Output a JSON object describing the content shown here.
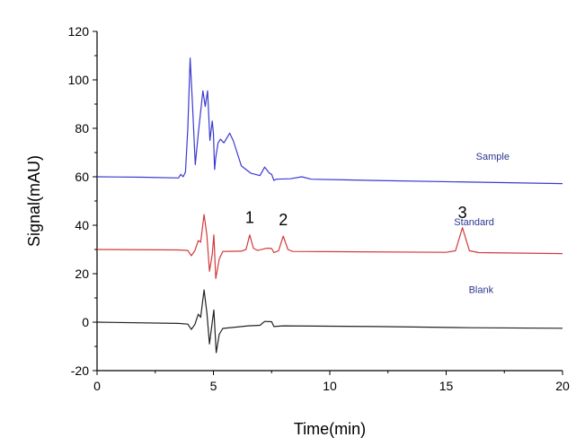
{
  "chart_data": {
    "type": "line",
    "title": "",
    "xlabel": "Time(min)",
    "ylabel": "Signal(mAU)",
    "xlim": [
      0,
      20
    ],
    "ylim": [
      -20,
      120
    ],
    "xticks": [
      0,
      5,
      10,
      15,
      20
    ],
    "yticks": [
      -20,
      0,
      20,
      40,
      60,
      80,
      100,
      120
    ],
    "grid": false,
    "series": [
      {
        "name": "Sample",
        "color": "#3a3ad0",
        "label_pos": [
          17.0,
          67
        ],
        "x": [
          0,
          2,
          3.5,
          3.6,
          3.7,
          3.8,
          3.9,
          4.0,
          4.1,
          4.22,
          4.35,
          4.55,
          4.65,
          4.75,
          4.85,
          4.95,
          5.0,
          5.05,
          5.1,
          5.2,
          5.3,
          5.45,
          5.7,
          5.85,
          6.2,
          6.6,
          7.0,
          7.2,
          7.4,
          7.5,
          7.6,
          7.7,
          8.3,
          8.8,
          9.2,
          12,
          16,
          20
        ],
        "y": [
          60,
          59.8,
          59.5,
          61,
          60,
          62,
          80,
          109,
          90,
          65,
          78,
          95.5,
          89,
          95.5,
          75,
          83,
          78,
          63,
          68,
          74,
          75.5,
          74,
          78,
          75,
          64.5,
          61.5,
          60.5,
          64,
          61.5,
          61,
          58.5,
          59,
          59.2,
          60,
          59,
          58.5,
          57.8,
          57.2
        ]
      },
      {
        "name": "Standard",
        "color": "#d23a3a",
        "label_pos": [
          16.2,
          40
        ],
        "x": [
          0,
          3.5,
          3.9,
          4.05,
          4.2,
          4.35,
          4.45,
          4.6,
          4.72,
          4.83,
          4.95,
          5.02,
          5.1,
          5.25,
          5.4,
          6.2,
          6.4,
          6.56,
          6.72,
          6.9,
          7.3,
          7.5,
          7.6,
          7.8,
          8.0,
          8.2,
          8.4,
          15.0,
          15.4,
          15.7,
          16.0,
          16.4,
          20
        ],
        "y": [
          30,
          29.8,
          29.6,
          27.4,
          29.5,
          33.7,
          33,
          44.4,
          36,
          21,
          28,
          36,
          18,
          26,
          29.2,
          29.3,
          30,
          36,
          30.5,
          29.6,
          30.5,
          30.4,
          28.7,
          29.5,
          35.5,
          30,
          29.2,
          28.8,
          29.5,
          39,
          29.5,
          28.7,
          28.3
        ]
      },
      {
        "name": "Blank",
        "color": "#222222",
        "label_pos": [
          16.5,
          12
        ],
        "x": [
          0,
          3.5,
          3.9,
          4.05,
          4.2,
          4.35,
          4.45,
          4.6,
          4.72,
          4.83,
          4.95,
          5.02,
          5.12,
          5.25,
          5.4,
          6.5,
          7.0,
          7.2,
          7.5,
          7.6,
          8.0,
          12,
          16,
          20
        ],
        "y": [
          0,
          -0.5,
          -0.8,
          -3,
          -1,
          3.3,
          2,
          13.3,
          4,
          -9,
          0,
          5,
          -12.6,
          -5,
          -2.6,
          -1.5,
          -1.3,
          0.3,
          0.2,
          -1.8,
          -1.5,
          -1.8,
          -2.3,
          -2.5
        ]
      }
    ],
    "annotations": [
      {
        "text": "1",
        "x": 6.56,
        "y": 41
      },
      {
        "text": "2",
        "x": 8.0,
        "y": 40
      },
      {
        "text": "3",
        "x": 15.7,
        "y": 43
      }
    ]
  }
}
